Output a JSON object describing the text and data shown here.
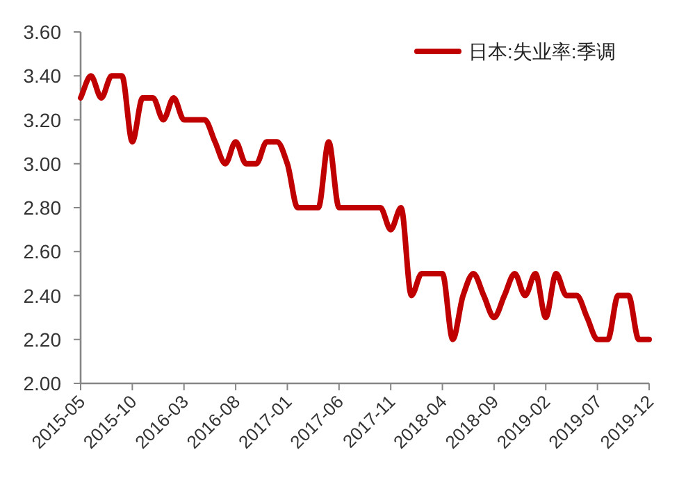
{
  "chart_data": {
    "type": "line",
    "x": [
      "2015-05",
      "2015-06",
      "2015-07",
      "2015-08",
      "2015-09",
      "2015-10",
      "2015-11",
      "2015-12",
      "2016-01",
      "2016-02",
      "2016-03",
      "2016-04",
      "2016-05",
      "2016-06",
      "2016-07",
      "2016-08",
      "2016-09",
      "2016-10",
      "2016-11",
      "2016-12",
      "2017-01",
      "2017-02",
      "2017-03",
      "2017-04",
      "2017-05",
      "2017-06",
      "2017-07",
      "2017-08",
      "2017-09",
      "2017-10",
      "2017-11",
      "2017-12",
      "2018-01",
      "2018-02",
      "2018-03",
      "2018-04",
      "2018-05",
      "2018-06",
      "2018-07",
      "2018-08",
      "2018-09",
      "2018-10",
      "2018-11",
      "2018-12",
      "2019-01",
      "2019-02",
      "2019-03",
      "2019-04",
      "2019-05",
      "2019-06",
      "2019-07",
      "2019-08",
      "2019-09",
      "2019-10",
      "2019-11",
      "2019-12"
    ],
    "series": [
      {
        "name": "日本:失业率:季调",
        "color": "#c00000",
        "values": [
          3.3,
          3.4,
          3.3,
          3.4,
          3.4,
          3.1,
          3.3,
          3.3,
          3.2,
          3.3,
          3.2,
          3.2,
          3.2,
          3.1,
          3.0,
          3.1,
          3.0,
          3.0,
          3.1,
          3.1,
          3.0,
          2.8,
          2.8,
          2.8,
          3.1,
          2.8,
          2.8,
          2.8,
          2.8,
          2.8,
          2.7,
          2.8,
          2.4,
          2.5,
          2.5,
          2.5,
          2.2,
          2.4,
          2.5,
          2.4,
          2.3,
          2.4,
          2.5,
          2.4,
          2.5,
          2.3,
          2.5,
          2.4,
          2.4,
          2.3,
          2.2,
          2.2,
          2.4,
          2.4,
          2.2,
          2.2
        ]
      }
    ],
    "xlim": [
      "2015-05",
      "2019-12"
    ],
    "xticks": [
      "2015-05",
      "2015-10",
      "2016-03",
      "2016-08",
      "2017-01",
      "2017-06",
      "2017-11",
      "2018-04",
      "2018-09",
      "2019-02",
      "2019-07",
      "2019-12"
    ],
    "ylim": [
      2,
      3.6
    ],
    "yticks": [
      {
        "value": 2,
        "label": "2.00"
      },
      {
        "value": 2.2,
        "label": "2.20"
      },
      {
        "value": 2.4,
        "label": "2.40"
      },
      {
        "value": 2.6,
        "label": "2.60"
      },
      {
        "value": 2.8,
        "label": "2.80"
      },
      {
        "value": 3,
        "label": "3.00"
      },
      {
        "value": 3.2,
        "label": "3.20"
      },
      {
        "value": 3.4,
        "label": "3.40"
      },
      {
        "value": 3.6,
        "label": "3.60"
      }
    ],
    "grid": false,
    "legend": "top right",
    "marker": "none",
    "line_style": "solid"
  }
}
